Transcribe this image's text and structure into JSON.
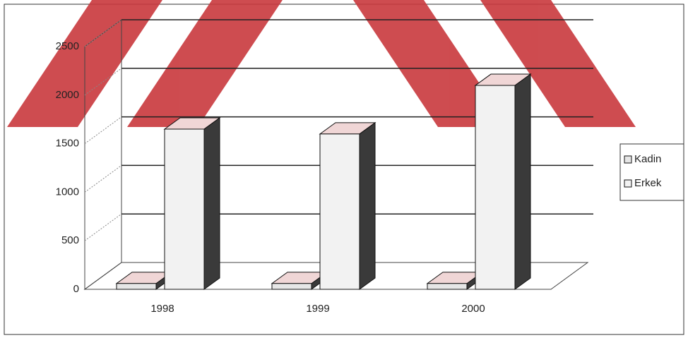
{
  "chart_data": {
    "type": "bar3d",
    "categories": [
      "1998",
      "1999",
      "2000"
    ],
    "series": [
      {
        "name": "Kadin",
        "color": "#e6e6e6",
        "values": [
          60,
          60,
          60
        ]
      },
      {
        "name": "Erkek",
        "color": "#f2f2f2",
        "values": [
          1650,
          1600,
          2100
        ]
      }
    ],
    "ylim": [
      0,
      2500
    ],
    "yticks": [
      0,
      500,
      1000,
      1500,
      2000,
      2500
    ],
    "grid": true,
    "legend": "right"
  }
}
